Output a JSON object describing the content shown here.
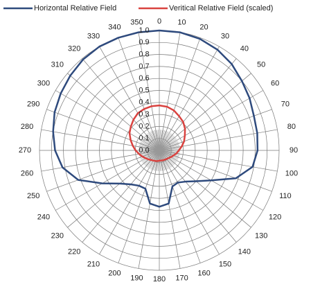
{
  "chart_data": {
    "type": "polar",
    "theta": [
      0,
      10,
      20,
      30,
      40,
      50,
      60,
      70,
      80,
      90,
      100,
      110,
      120,
      130,
      140,
      150,
      160,
      170,
      180,
      190,
      200,
      210,
      220,
      230,
      240,
      250,
      260,
      270,
      280,
      290,
      300,
      310,
      320,
      330,
      340,
      350
    ],
    "series": [
      {
        "name": "Horizontal Relative Field",
        "color": "#2e4a7d",
        "values": [
          1.0,
          1.0,
          0.99,
          0.97,
          0.94,
          0.9,
          0.87,
          0.84,
          0.83,
          0.82,
          0.79,
          0.68,
          0.5,
          0.4,
          0.34,
          0.31,
          0.32,
          0.45,
          0.47,
          0.45,
          0.34,
          0.34,
          0.37,
          0.43,
          0.55,
          0.72,
          0.82,
          0.87,
          0.9,
          0.93,
          0.95,
          0.97,
          0.99,
          1.0,
          1.0,
          1.0
        ]
      },
      {
        "name": "Veritical Relative Field (scaled)",
        "color": "#d9423f",
        "values": [
          0.375,
          0.37,
          0.355,
          0.33,
          0.31,
          0.28,
          0.246,
          0.22,
          0.19,
          0.163,
          0.145,
          0.125,
          0.112,
          0.1,
          0.094,
          0.09,
          0.088,
          0.086,
          0.086,
          0.09,
          0.094,
          0.098,
          0.105,
          0.117,
          0.131,
          0.15,
          0.172,
          0.198,
          0.225,
          0.255,
          0.287,
          0.31,
          0.335,
          0.358,
          0.368,
          0.374
        ]
      }
    ],
    "rlim": [
      0,
      1
    ],
    "rticks": [
      {
        "value": 0,
        "label": "0.0"
      },
      0.1,
      0.2,
      0.3,
      0.4,
      0.5,
      0.6,
      0.7,
      0.8,
      0.9,
      {
        "value": 1,
        "label": "1.0"
      }
    ],
    "thetaticks": [
      0,
      10,
      20,
      30,
      40,
      50,
      60,
      70,
      80,
      90,
      100,
      110,
      120,
      130,
      140,
      150,
      160,
      170,
      180,
      190,
      200,
      210,
      220,
      230,
      240,
      250,
      260,
      270,
      280,
      290,
      300,
      310,
      320,
      330,
      340,
      350
    ],
    "grid": true,
    "legend": "top"
  }
}
